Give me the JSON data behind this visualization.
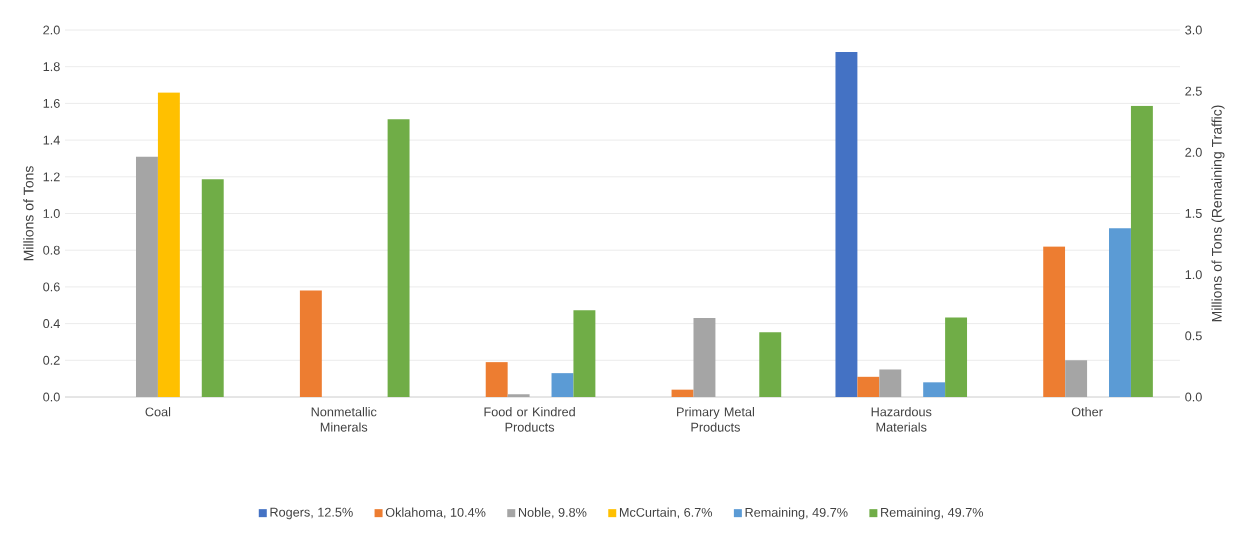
{
  "chart_data": {
    "type": "bar",
    "categories": [
      "Coal",
      "Nonmetallic Minerals",
      "Food or Kindred Products",
      "Primary Metal Products",
      "Hazardous Materials",
      "Other"
    ],
    "series": [
      {
        "name": "Rogers, 12.5%",
        "color": "#4472c4",
        "values": [
          0,
          0,
          0,
          0,
          1.88,
          0
        ]
      },
      {
        "name": "Oklahoma, 10.4%",
        "color": "#ed7d31",
        "values": [
          0,
          0.58,
          0.19,
          0.04,
          0.11,
          0.82
        ]
      },
      {
        "name": "Noble, 9.8%",
        "color": "#a5a5a5",
        "values": [
          1.31,
          0,
          0.015,
          0.43,
          0.15,
          0.2
        ]
      },
      {
        "name": "McCurtain, 6.7%",
        "color": "#ffc000",
        "values": [
          1.66,
          0,
          0,
          0,
          0,
          0
        ]
      },
      {
        "name": "Remaining, 49.7%",
        "color": "#5b9bd5",
        "values": [
          0,
          0,
          0.13,
          0,
          0.08,
          0.92
        ]
      },
      {
        "name": "Remaining, 49.7%",
        "color": "#70ad47",
        "axis": "y2",
        "values": [
          1.78,
          2.27,
          0.71,
          0.53,
          0.65,
          2.38
        ]
      }
    ],
    "ylabel": "Millions of Tons",
    "y2label": "Millions of Tons (Remaining Traffic)",
    "ylim": [
      0,
      2.0
    ],
    "yticks": [
      {
        "value": 0,
        "label": "0.0"
      },
      {
        "value": 0.2,
        "label": "0.2"
      },
      {
        "value": 0.4,
        "label": "0.4"
      },
      {
        "value": 0.6,
        "label": "0.6"
      },
      {
        "value": 0.8,
        "label": "0.8"
      },
      {
        "value": 1.0,
        "label": "1.0"
      },
      {
        "value": 1.2,
        "label": "1.2"
      },
      {
        "value": 1.4,
        "label": "1.4"
      },
      {
        "value": 1.6,
        "label": "1.6"
      },
      {
        "value": 1.8,
        "label": "1.8"
      },
      {
        "value": 2.0,
        "label": "2.0"
      }
    ],
    "y2lim": [
      0,
      3.0
    ],
    "y2ticks": [
      {
        "value": 0,
        "label": "0.0"
      },
      {
        "value": 0.5,
        "label": "0.5"
      },
      {
        "value": 1.0,
        "label": "1.0"
      },
      {
        "value": 1.5,
        "label": "1.5"
      },
      {
        "value": 2.0,
        "label": "2.0"
      },
      {
        "value": 2.5,
        "label": "2.5"
      },
      {
        "value": 3.0,
        "label": "3.0"
      }
    ],
    "grid": "y",
    "legend": "bottom"
  }
}
